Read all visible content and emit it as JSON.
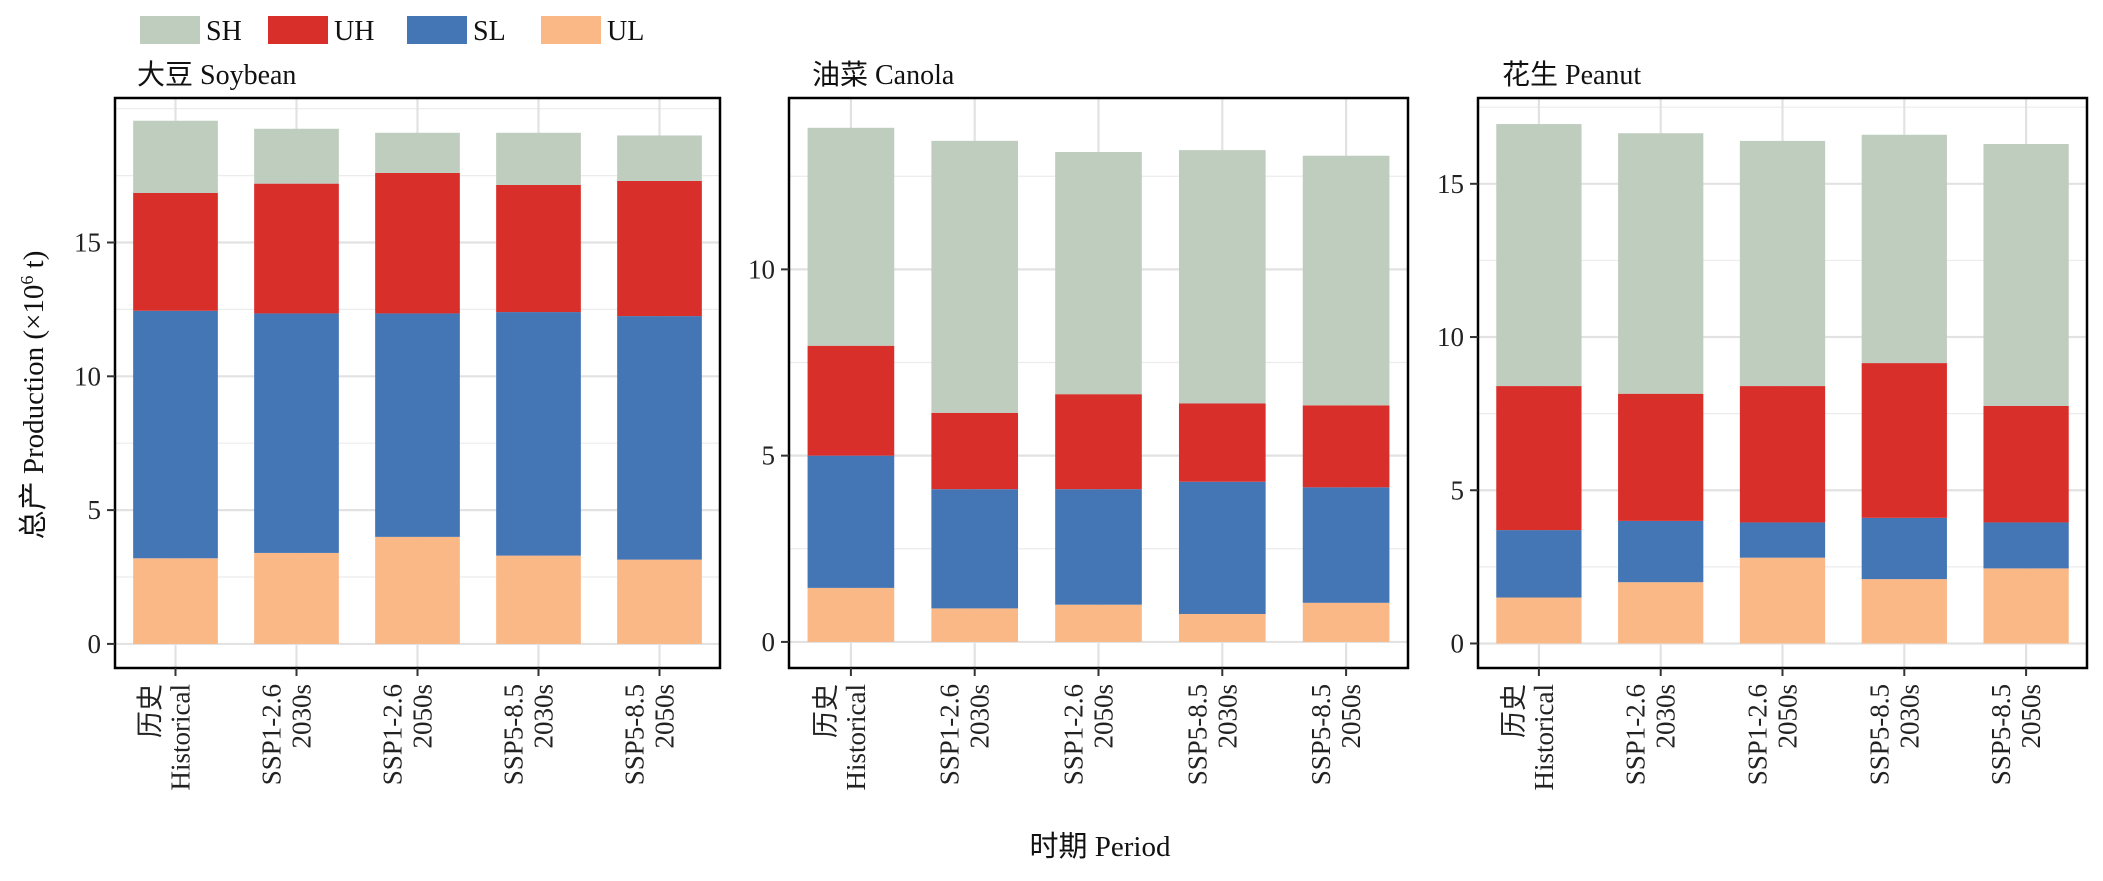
{
  "chart_data": {
    "type": "bar",
    "stacked": true,
    "legend": {
      "placement": "top-left",
      "entries": [
        {
          "key": "SH",
          "label": "SH",
          "color": "#bfcdbf"
        },
        {
          "key": "UH",
          "label": "UH",
          "color": "#d92f2b"
        },
        {
          "key": "SL",
          "label": "SL",
          "color": "#4475b4"
        },
        {
          "key": "UL",
          "label": "UL",
          "color": "#fab886"
        }
      ]
    },
    "xlabel": "时期 Period",
    "ylabel_main": "总产 Production (×10",
    "ylabel_sup": "6",
    "ylabel_tail": " t)",
    "grid": true,
    "categories": [
      {
        "line1": "历史",
        "line2": "Historical"
      },
      {
        "line1": "SSP1-2.6",
        "line2": "2030s"
      },
      {
        "line1": "SSP1-2.6",
        "line2": "2050s"
      },
      {
        "line1": "SSP5-8.5",
        "line2": "2030s"
      },
      {
        "line1": "SSP5-8.5",
        "line2": "2050s"
      }
    ],
    "panels": [
      {
        "title": "大豆 Soybean",
        "ylim": [
          -0.9,
          20.4
        ],
        "yticks": [
          0,
          5,
          10,
          15
        ],
        "series": [
          {
            "name": "UL",
            "values": [
              3.2,
              3.4,
              4.0,
              3.3,
              3.15
            ]
          },
          {
            "name": "SL",
            "values": [
              9.25,
              8.95,
              8.35,
              9.1,
              9.1
            ]
          },
          {
            "name": "UH",
            "values": [
              4.4,
              4.85,
              5.25,
              4.75,
              5.05
            ]
          },
          {
            "name": "SH",
            "values": [
              2.7,
              2.05,
              1.5,
              1.95,
              1.7
            ]
          }
        ]
      },
      {
        "title": "油菜 Canola",
        "ylim": [
          -0.7,
          14.6
        ],
        "yticks": [
          0,
          5,
          10
        ],
        "series": [
          {
            "name": "UL",
            "values": [
              1.45,
              0.9,
              1.0,
              0.75,
              1.05
            ]
          },
          {
            "name": "SL",
            "values": [
              3.55,
              3.2,
              3.1,
              3.55,
              3.1
            ]
          },
          {
            "name": "UH",
            "values": [
              2.95,
              2.05,
              2.55,
              2.1,
              2.2
            ]
          },
          {
            "name": "SH",
            "values": [
              5.85,
              7.3,
              6.5,
              6.8,
              6.7
            ]
          }
        ]
      },
      {
        "title": "花生 Peanut",
        "ylim": [
          -0.8,
          17.8
        ],
        "yticks": [
          0,
          5,
          10,
          15
        ],
        "series": [
          {
            "name": "UL",
            "values": [
              1.5,
              2.0,
              2.8,
              2.1,
              2.45
            ]
          },
          {
            "name": "SL",
            "values": [
              2.2,
              2.0,
              1.15,
              2.0,
              1.5
            ]
          },
          {
            "name": "UH",
            "values": [
              4.7,
              4.15,
              4.45,
              5.05,
              3.8
            ]
          },
          {
            "name": "SH",
            "values": [
              8.55,
              8.5,
              8.0,
              7.45,
              8.55
            ]
          }
        ]
      }
    ]
  }
}
